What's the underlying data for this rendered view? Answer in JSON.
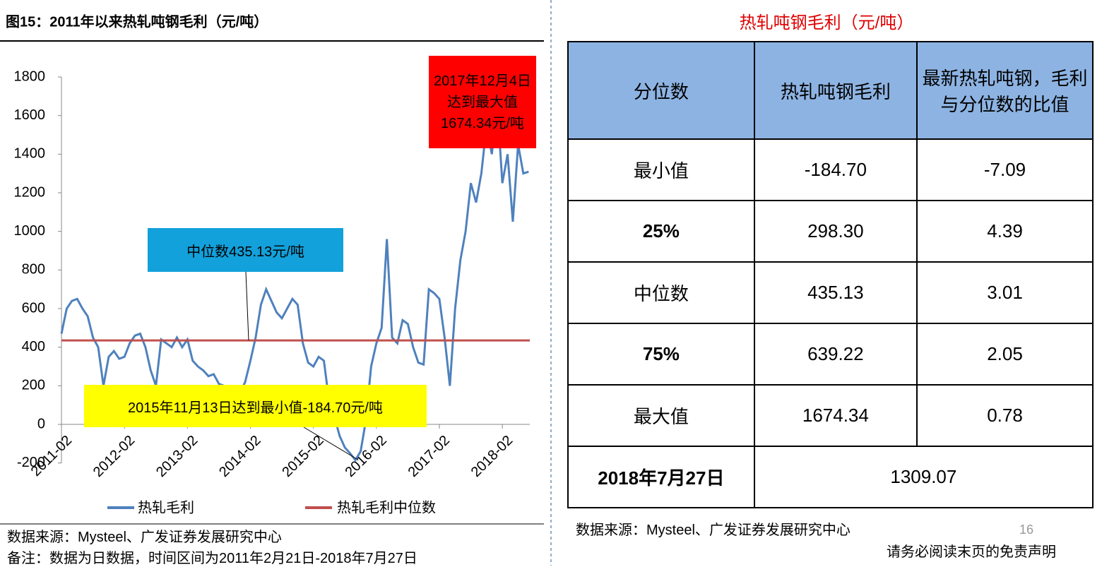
{
  "chart_data": {
    "type": "line",
    "title": "图15：2011年以来热轧吨钢毛利（元/吨）",
    "x": [
      "2011-02",
      "2011-03",
      "2011-04",
      "2011-05",
      "2011-06",
      "2011-07",
      "2011-08",
      "2011-09",
      "2011-10",
      "2011-11",
      "2011-12",
      "2012-01",
      "2012-02",
      "2012-03",
      "2012-04",
      "2012-05",
      "2012-06",
      "2012-07",
      "2012-08",
      "2012-09",
      "2012-10",
      "2012-11",
      "2012-12",
      "2013-01",
      "2013-02",
      "2013-03",
      "2013-04",
      "2013-05",
      "2013-06",
      "2013-07",
      "2013-08",
      "2013-09",
      "2013-10",
      "2013-11",
      "2013-12",
      "2014-01",
      "2014-02",
      "2014-03",
      "2014-04",
      "2014-05",
      "2014-06",
      "2014-07",
      "2014-08",
      "2014-09",
      "2014-10",
      "2014-11",
      "2014-12",
      "2015-01",
      "2015-02",
      "2015-03",
      "2015-04",
      "2015-05",
      "2015-06",
      "2015-07",
      "2015-08",
      "2015-09",
      "2015-10",
      "2015-11",
      "2015-12",
      "2016-01",
      "2016-02",
      "2016-03",
      "2016-04",
      "2016-05",
      "2016-06",
      "2016-07",
      "2016-08",
      "2016-09",
      "2016-10",
      "2016-11",
      "2016-12",
      "2017-01",
      "2017-02",
      "2017-03",
      "2017-04",
      "2017-05",
      "2017-06",
      "2017-07",
      "2017-08",
      "2017-09",
      "2017-10",
      "2017-11",
      "2017-12",
      "2018-01",
      "2018-02",
      "2018-03",
      "2018-04",
      "2018-05",
      "2018-06",
      "2018-07"
    ],
    "series": [
      {
        "name": "热轧毛利",
        "color": "#4f81bd",
        "values": [
          470,
          600,
          640,
          650,
          600,
          560,
          450,
          400,
          200,
          350,
          380,
          340,
          350,
          420,
          460,
          470,
          400,
          280,
          200,
          440,
          420,
          400,
          450,
          400,
          440,
          330,
          300,
          280,
          250,
          260,
          210,
          200,
          170,
          150,
          160,
          220,
          330,
          450,
          620,
          700,
          640,
          580,
          550,
          600,
          650,
          620,
          420,
          320,
          300,
          350,
          330,
          120,
          40,
          -60,
          -120,
          -150,
          -185,
          -140,
          20,
          300,
          420,
          500,
          960,
          450,
          420,
          540,
          520,
          400,
          320,
          310,
          700,
          680,
          650,
          450,
          200,
          600,
          850,
          1000,
          1250,
          1150,
          1300,
          1550,
          1400,
          1674,
          1250,
          1400,
          1050,
          1450,
          1300,
          1309
        ]
      }
    ],
    "hline": {
      "name": "热轧毛利中位数",
      "color": "#c0504d",
      "value": 435.13
    },
    "ylim": [
      -200,
      1800
    ],
    "yticks": [
      -200,
      0,
      200,
      400,
      600,
      800,
      1000,
      1200,
      1400,
      1600,
      1800
    ],
    "xticks": [
      "2011-02",
      "2012-02",
      "2013-02",
      "2014-02",
      "2015-02",
      "2016-02",
      "2017-02",
      "2018-02"
    ],
    "annotations": [
      "中位数435.13元/吨",
      "2015年11月13日达到最小值-184.70元/吨",
      "2017年12月4日达到最大值1674.34元/吨"
    ]
  },
  "table": {
    "title": "热轧吨钢毛利（元/吨）",
    "header": [
      "分位数",
      "热轧吨钢毛利",
      "最新热轧吨钢，毛利与分位数的比值"
    ],
    "rows": [
      [
        "最小值",
        "-184.70",
        "-7.09"
      ],
      [
        "25%",
        "298.30",
        "4.39"
      ],
      [
        "中位数",
        "435.13",
        "3.01"
      ],
      [
        "75%",
        "639.22",
        "2.05"
      ],
      [
        "最大值",
        "1674.34",
        "0.78"
      ]
    ],
    "last_row": [
      "2018年7月27日",
      "1309.07"
    ]
  },
  "notes": {
    "source_left": "数据来源：Mysteel、广发证券发展研究中心",
    "remark": "备注：数据为日数据，时间区间为2011年2月21日-2018年7月27日",
    "source_right": "数据来源：Mysteel、广发证券发展研究中心",
    "page_number": "16",
    "disclaimer": "请务必阅读末页的免责声明"
  }
}
